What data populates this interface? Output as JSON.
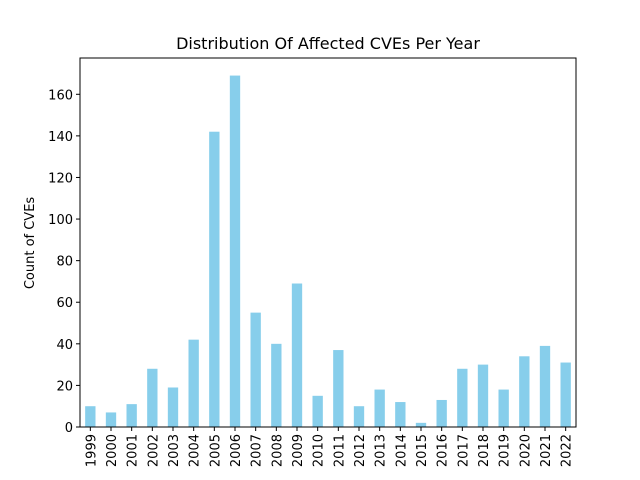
{
  "chart_data": {
    "type": "bar",
    "title": "Distribution Of Affected CVEs Per Year",
    "y_label": "Count of CVEs",
    "categories": [
      "1999",
      "2000",
      "2001",
      "2002",
      "2003",
      "2004",
      "2005",
      "2006",
      "2007",
      "2008",
      "2009",
      "2010",
      "2011",
      "2012",
      "2013",
      "2014",
      "2015",
      "2016",
      "2017",
      "2018",
      "2019",
      "2020",
      "2021",
      "2022"
    ],
    "values": [
      10,
      7,
      11,
      28,
      19,
      42,
      142,
      169,
      55,
      40,
      69,
      15,
      37,
      10,
      18,
      12,
      2,
      13,
      28,
      30,
      18,
      34,
      39,
      31
    ],
    "color": "#87ceeb",
    "ylim": [
      0,
      177.45
    ],
    "yticks": [
      0,
      20,
      40,
      60,
      80,
      100,
      120,
      140,
      160
    ],
    "grid": false
  }
}
